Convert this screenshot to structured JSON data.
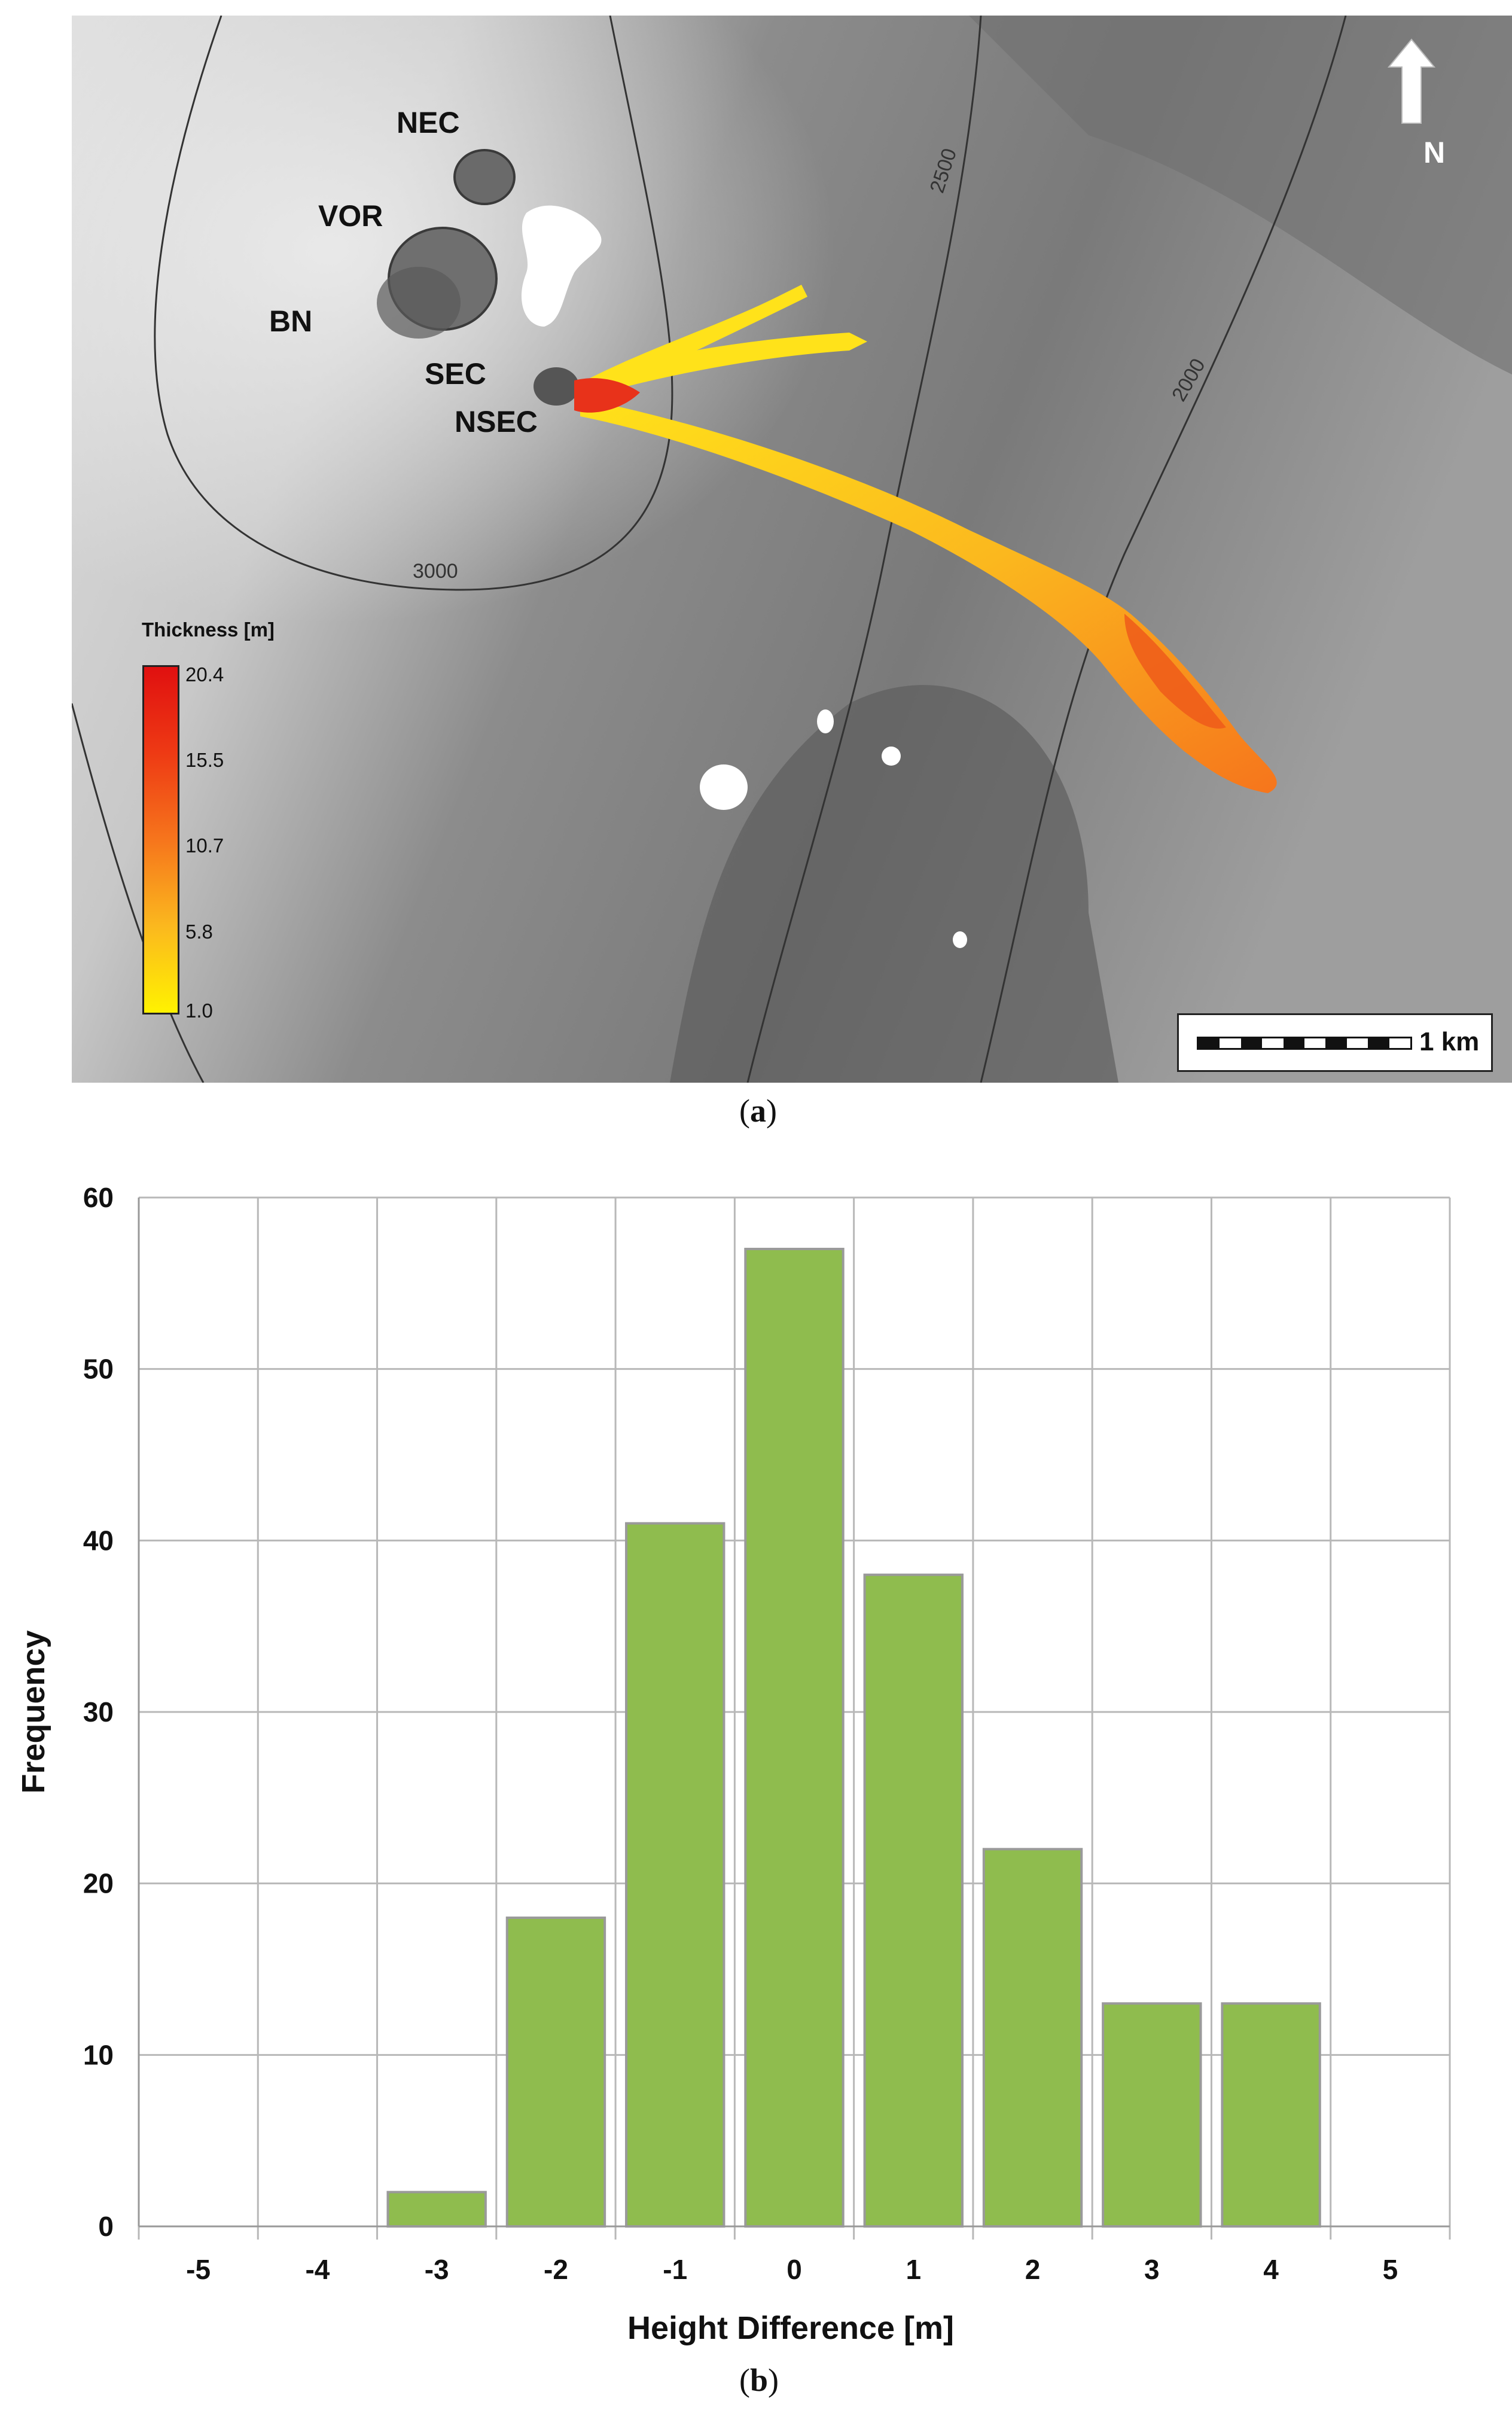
{
  "panel_a": {
    "caption_label": "a",
    "map_labels": {
      "nec": "NEC",
      "vor": "VOR",
      "bn": "BN",
      "sec": "SEC",
      "nsec": "NSEC"
    },
    "contour_labels": {
      "c2500": "2500",
      "c2000": "2000",
      "c3000": "3000"
    },
    "north_label": "N",
    "scale_label": "1 km",
    "legend": {
      "title": "Thickness [m]",
      "ticks": [
        "20.4",
        "15.5",
        "10.7",
        "5.8",
        "1.0"
      ],
      "colors": {
        "max": "#e01010",
        "high": "#ee3a14",
        "mid": "#f6751c",
        "low": "#fbb81e",
        "min": "#fff200"
      }
    },
    "icons": [
      "north-arrow-icon",
      "scale-bar-icon"
    ]
  },
  "panel_b": {
    "caption_label": "b"
  },
  "chart_data": {
    "type": "bar",
    "categories": [
      "-5",
      "-4",
      "-3",
      "-2",
      "-1",
      "0",
      "1",
      "2",
      "3",
      "4",
      "5"
    ],
    "values": [
      0,
      0,
      2,
      18,
      41,
      57,
      38,
      22,
      13,
      13,
      0
    ],
    "title": "",
    "xlabel": "Height Difference [m]",
    "ylabel": "Frequency",
    "ylim": [
      0,
      60
    ],
    "yticks": [
      "0",
      "10",
      "20",
      "30",
      "40",
      "50",
      "60"
    ],
    "grid": true,
    "bar_color": "#8fbc4e",
    "bar_edge_color": "#9a9a9a"
  }
}
